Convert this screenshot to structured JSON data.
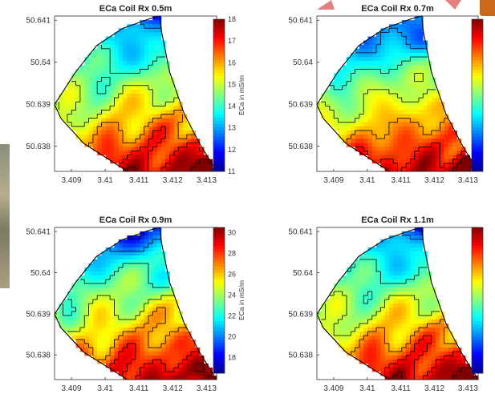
{
  "figure": {
    "colormap": [
      "#00008f",
      "#0000ff",
      "#0080ff",
      "#00ffff",
      "#80ff80",
      "#ffff00",
      "#ff8000",
      "#ff0000",
      "#800000"
    ],
    "boundary_color": "#000000",
    "contour_line_color": "#000000"
  },
  "chart_data": [
    {
      "type": "heatmap",
      "title": "ECa Coil Rx 0.5m",
      "x_ticks": [
        "3.409",
        "3.41",
        "3.411",
        "3.412",
        "3.413"
      ],
      "y_ticks": [
        "50.641",
        "50.64",
        "50.639",
        "50.638"
      ],
      "xlim": [
        3.4085,
        3.4133
      ],
      "ylim": [
        50.6374,
        50.6411
      ],
      "colorbar": {
        "label": "ECa in mS/m",
        "ticks": [
          "18",
          "17",
          "16",
          "15",
          "14",
          "13",
          "12",
          "11"
        ],
        "range": [
          11,
          18
        ]
      },
      "value_range": [
        11,
        18
      ]
    },
    {
      "type": "heatmap",
      "title": "ECa Coil Rx 0.7m",
      "x_ticks": [
        "3.409",
        "3.41",
        "3.411",
        "3.412",
        "3.413"
      ],
      "y_ticks": [
        "50.641",
        "50.64",
        "50.639",
        "50.638"
      ],
      "xlim": [
        3.4085,
        3.4133
      ],
      "ylim": [
        50.6374,
        50.6411
      ],
      "colorbar": {
        "label": "",
        "ticks": [],
        "range": [
          0,
          1
        ]
      },
      "value_range": [
        0,
        1
      ]
    },
    {
      "type": "heatmap",
      "title": "ECa Coil Rx 0.9m",
      "x_ticks": [
        "3.409",
        "3.41",
        "3.411",
        "3.412",
        "3.413"
      ],
      "y_ticks": [
        "50.641",
        "50.64",
        "50.639",
        "50.638"
      ],
      "xlim": [
        3.4085,
        3.4133
      ],
      "ylim": [
        50.6374,
        50.6411
      ],
      "colorbar": {
        "label": "ECa in mS/m",
        "ticks": [
          "30",
          "28",
          "26",
          "24",
          "22",
          "20",
          "18"
        ],
        "range": [
          16.5,
          30.5
        ]
      },
      "value_range": [
        16.5,
        30.5
      ]
    },
    {
      "type": "heatmap",
      "title": "ECa Coil Rx 1.1m",
      "x_ticks": [
        "3.409",
        "3.41",
        "3.411",
        "3.412",
        "3.413"
      ],
      "y_ticks": [
        "50.641",
        "50.64",
        "50.639",
        "50.638"
      ],
      "xlim": [
        3.4085,
        3.4133
      ],
      "ylim": [
        50.6374,
        50.6411
      ],
      "colorbar": {
        "label": "",
        "ticks": [],
        "range": [
          0,
          1
        ]
      },
      "value_range": [
        0,
        1
      ]
    }
  ]
}
